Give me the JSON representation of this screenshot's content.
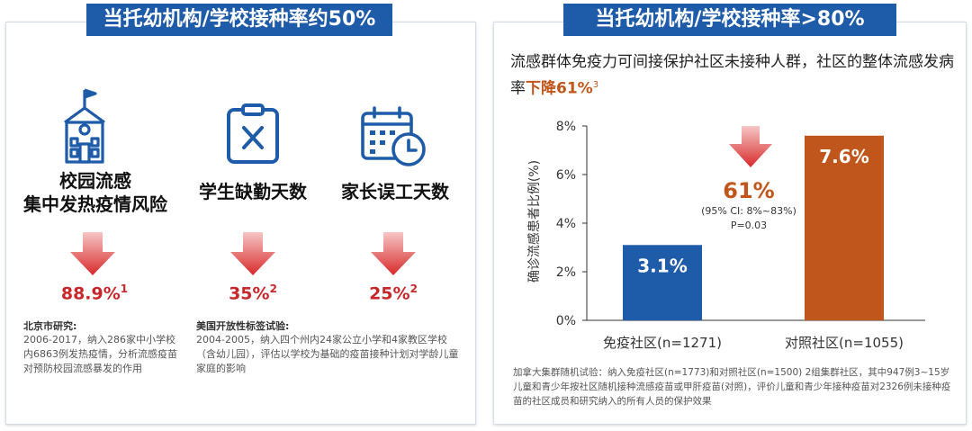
{
  "left": {
    "banner": "当托幼机构/学校接种率约50%",
    "items": [
      {
        "title": "校园流感\n集中发热疫情风险",
        "pct": "88.9%",
        "sup": "1",
        "icon": "school-icon"
      },
      {
        "title": "学生缺勤天数",
        "pct": "35%",
        "sup": "2",
        "icon": "clipboard-x-icon"
      },
      {
        "title": "家长误工天数",
        "pct": "25%",
        "sup": "2",
        "icon": "calendar-clock-icon"
      }
    ],
    "notes": [
      {
        "title": "北京市研究:",
        "body": "2006-2017，纳入286家中小学校内6863例发热疫情，分析流感疫苗对预防校园流感暴发的作用"
      },
      {
        "title": "美国开放性标签试验:",
        "body": "2004-2005，纳入四个州内24家公立小学和4家教区学校（含幼儿园），评估以学校为基础的疫苗接种计划对学龄儿童家庭的影响"
      }
    ]
  },
  "right": {
    "banner": "当托幼机构/学校接种率>80%",
    "desc_main": "流感群体免疫力可间接保护社区未接种人群，社区的整体流感发病率",
    "desc_highlight": "下降61%",
    "desc_sup": "3",
    "footnote": "加拿大集群随机试验：纳入免疫社区(n=1773)和对照社区(n=1500) 2组集群社区，其中947例3~15岁儿童和青少年按社区随机接种流感疫苗或甲肝疫苗(对照)，评价儿童和青少年接种疫苗对2326例未接种疫苗的社区成员和研究纳入的所有人员的保护效果"
  },
  "chart_data": {
    "type": "bar",
    "categories": [
      "免疫社区(n=1271)",
      "对照社区(n=1055)"
    ],
    "values": [
      3.1,
      7.6
    ],
    "value_labels": [
      "3.1%",
      "7.6%"
    ],
    "colors": [
      "#1e5ba8",
      "#c0561b"
    ],
    "ylabel": "确诊流感患者比例(%)",
    "ylim": [
      0,
      8
    ],
    "yticks": [
      "0%",
      "2%",
      "4%",
      "6%",
      "8%"
    ],
    "grid": false,
    "annotation": {
      "pct": "61%",
      "ci": "(95% CI: 8%~83%)",
      "p": "P=0.03"
    }
  }
}
